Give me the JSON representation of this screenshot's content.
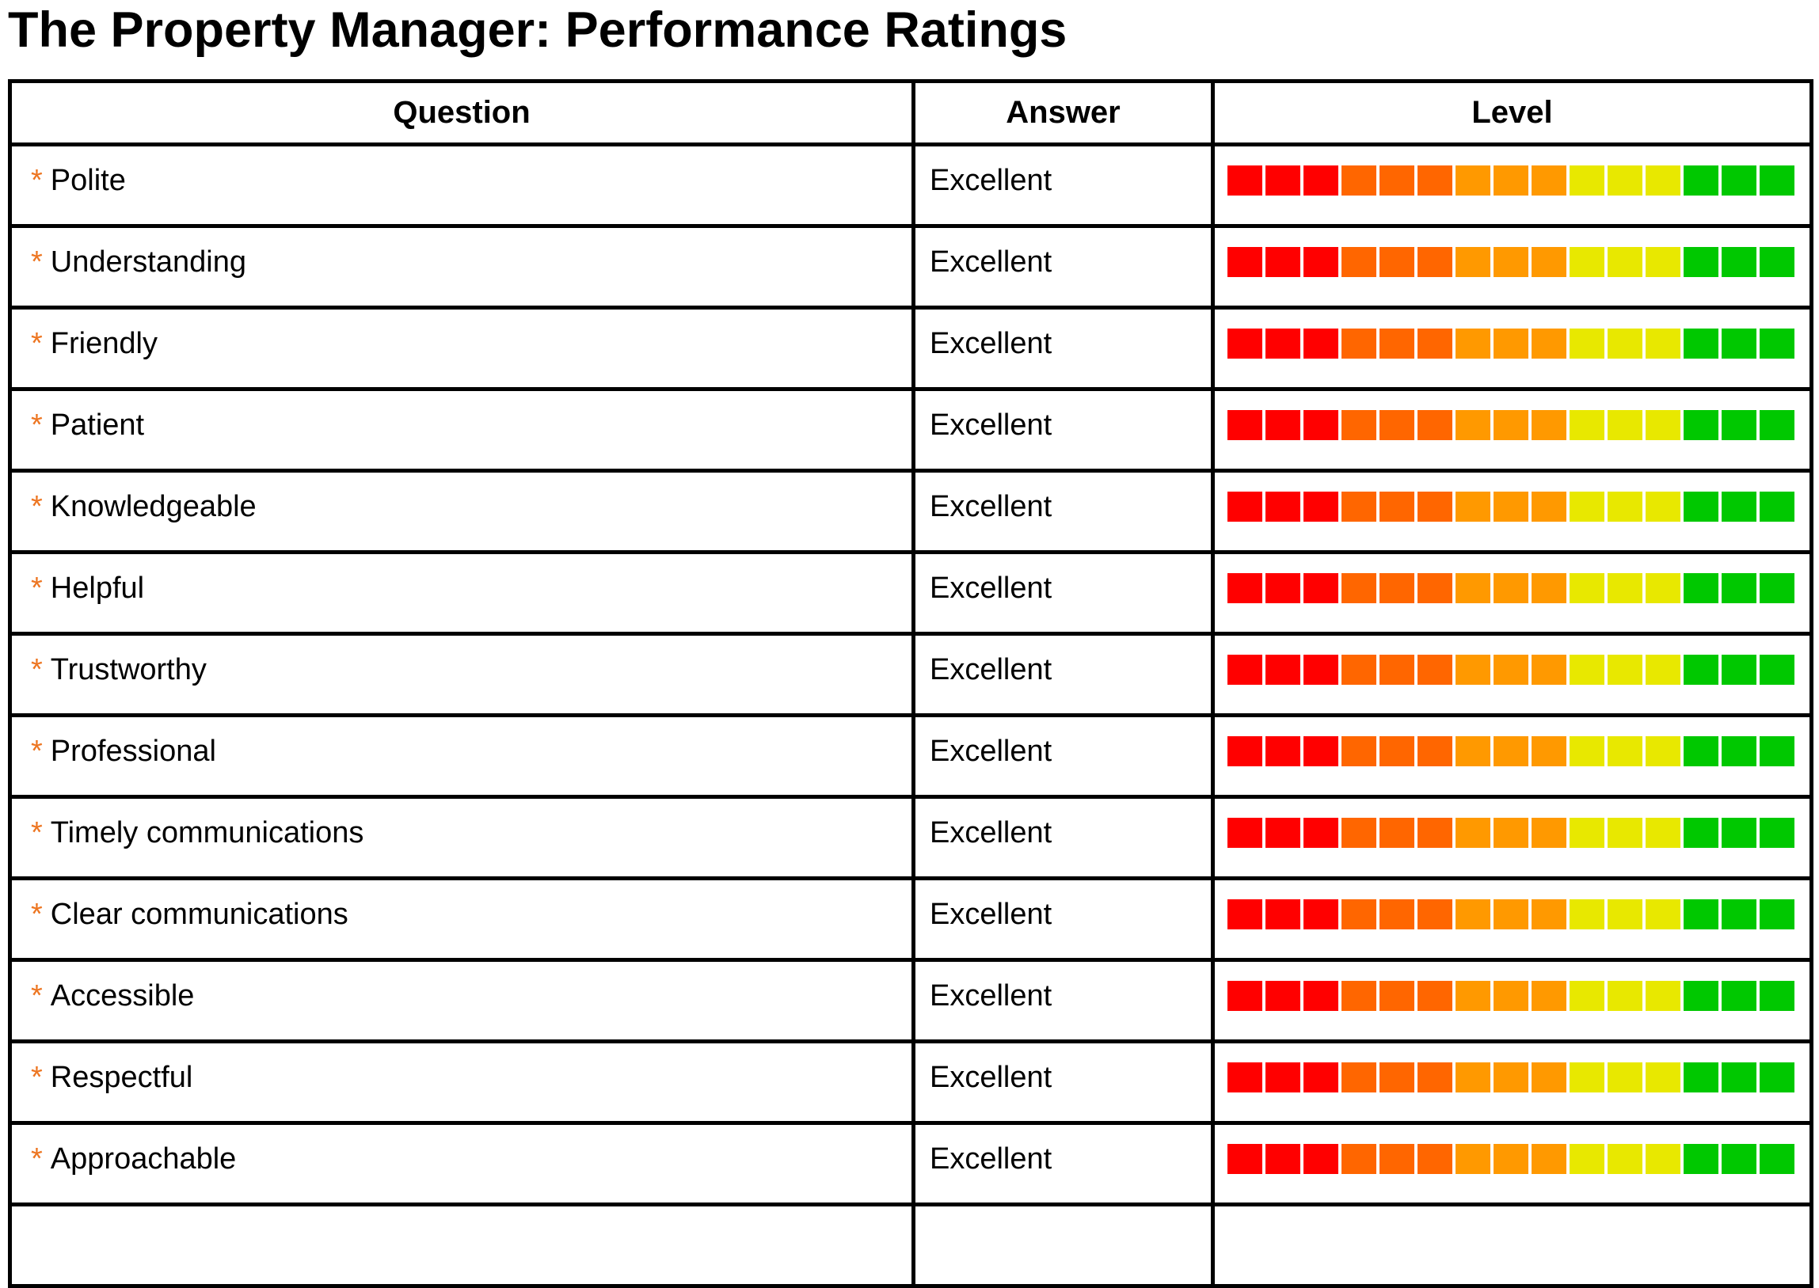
{
  "title": "The Property Manager: Performance Ratings",
  "table": {
    "columns": [
      "Question",
      "Answer",
      "Level"
    ],
    "required_marker": "*",
    "rows": [
      {
        "question": "Polite",
        "answer": "Excellent"
      },
      {
        "question": "Understanding",
        "answer": "Excellent"
      },
      {
        "question": "Friendly",
        "answer": "Excellent"
      },
      {
        "question": "Patient",
        "answer": "Excellent"
      },
      {
        "question": "Knowledgeable",
        "answer": "Excellent"
      },
      {
        "question": "Helpful",
        "answer": "Excellent"
      },
      {
        "question": "Trustworthy",
        "answer": "Excellent"
      },
      {
        "question": "Professional",
        "answer": "Excellent"
      },
      {
        "question": "Timely communications",
        "answer": "Excellent"
      },
      {
        "question": "Clear communications",
        "answer": "Excellent"
      },
      {
        "question": "Accessible",
        "answer": "Excellent"
      },
      {
        "question": "Respectful",
        "answer": "Excellent"
      },
      {
        "question": "Approachable",
        "answer": "Excellent"
      }
    ],
    "partial_next_row_visible": true
  },
  "level_scale": {
    "segments_per_row": 15,
    "filled_segments": 15,
    "segment_colors": [
      "#FF0000",
      "#FF0000",
      "#FF0000",
      "#FF6600",
      "#FF6600",
      "#FF6600",
      "#FF9900",
      "#FF9900",
      "#FF9900",
      "#E8E800",
      "#E8E800",
      "#E8E800",
      "#00C800",
      "#00C800",
      "#00C800"
    ]
  },
  "colors": {
    "required_marker": "#ED7622",
    "border": "#000000",
    "text": "#000000",
    "background": "#FFFFFF"
  }
}
